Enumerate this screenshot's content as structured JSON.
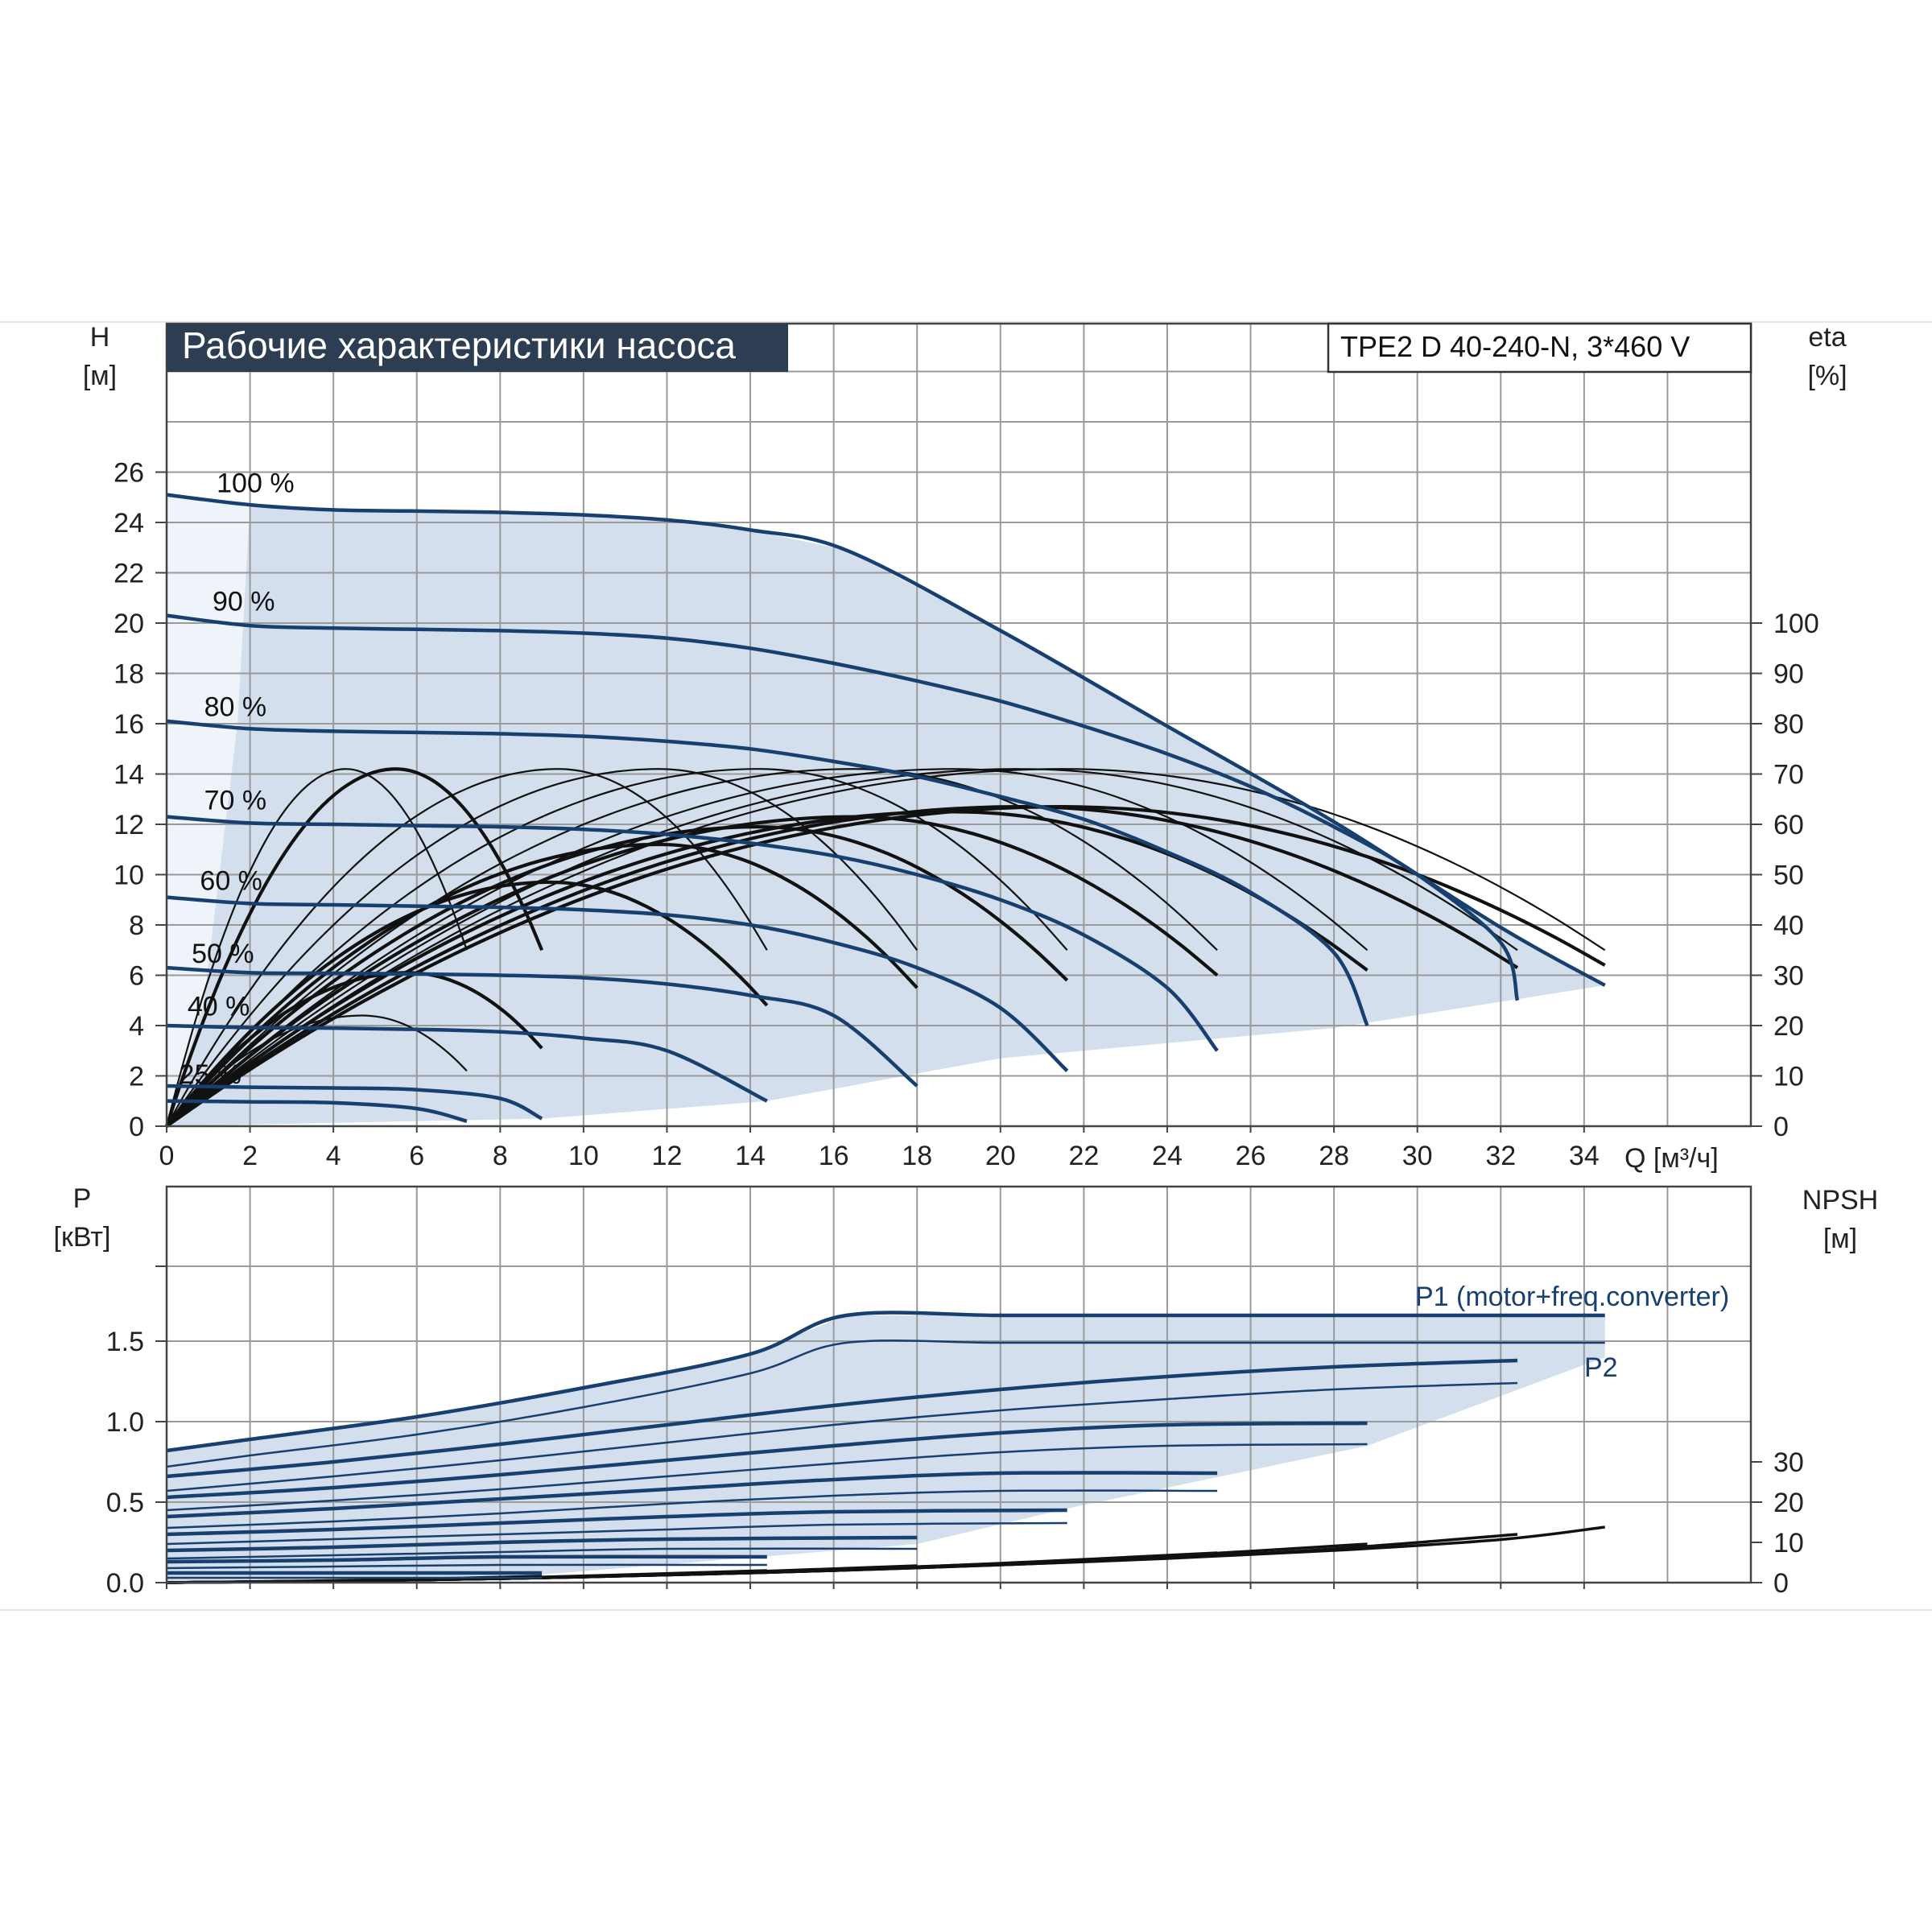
{
  "chart_data": [
    {
      "type": "line",
      "title": "Рабочие характеристики насоса",
      "model": "TPE2 D 40-240-N, 3*460 V",
      "ylabel": "H",
      "yunit": "[м]",
      "y2label": "eta",
      "y2unit": "[%]",
      "xlabel": "Q [м³/ч]",
      "xlim": [
        0,
        38
      ],
      "ylim": [
        0,
        26
      ],
      "y2lim": [
        0,
        130
      ],
      "x_ticks": [
        "0",
        "2",
        "4",
        "6",
        "8",
        "10",
        "12",
        "14",
        "16",
        "18",
        "20",
        "22",
        "24",
        "26",
        "28",
        "30",
        "32",
        "34"
      ],
      "y_ticks": [
        "0",
        "2",
        "4",
        "6",
        "8",
        "10",
        "12",
        "14",
        "16",
        "18",
        "20",
        "22",
        "24",
        "26"
      ],
      "y2_ticks": [
        "0",
        "10",
        "20",
        "30",
        "40",
        "50",
        "60",
        "70",
        "80",
        "90",
        "100"
      ],
      "grid": true,
      "operating_range_fill": "#d3dfec",
      "series": [
        {
          "name": "100 %",
          "color": "#173f6f",
          "x": [
            0,
            2,
            4,
            6,
            8,
            10,
            12,
            14,
            16.3,
            20,
            24,
            28,
            32,
            34.5
          ],
          "y": [
            25.1,
            24.7,
            24.5,
            24.45,
            24.4,
            24.3,
            24.1,
            23.7,
            22.9,
            19.7,
            15.9,
            12.1,
            7.9,
            5.6
          ]
        },
        {
          "name": "90 %",
          "color": "#173f6f",
          "x": [
            0,
            2,
            4,
            6,
            8,
            10,
            12,
            14,
            16,
            18,
            20,
            22,
            24,
            26,
            28,
            30,
            32,
            32.4
          ],
          "y": [
            20.3,
            19.9,
            19.8,
            19.75,
            19.7,
            19.6,
            19.4,
            19.0,
            18.4,
            17.7,
            16.9,
            15.9,
            14.8,
            13.5,
            11.9,
            10.0,
            7.3,
            5.0
          ]
        },
        {
          "name": "80 %",
          "color": "#173f6f",
          "x": [
            0,
            2,
            4,
            6,
            8,
            10,
            12,
            14,
            16,
            18,
            20,
            22,
            24,
            26,
            28,
            28.8
          ],
          "y": [
            16.1,
            15.8,
            15.7,
            15.65,
            15.6,
            15.5,
            15.3,
            15.0,
            14.5,
            13.9,
            13.1,
            12.2,
            10.9,
            9.3,
            6.9,
            4.0
          ]
        },
        {
          "name": "70 %",
          "color": "#173f6f",
          "x": [
            0,
            2,
            4,
            6,
            8,
            10,
            12,
            14,
            16,
            18,
            20,
            22,
            24,
            25.2
          ],
          "y": [
            12.3,
            12.05,
            12.0,
            11.95,
            11.9,
            11.8,
            11.6,
            11.25,
            10.75,
            10.0,
            9.0,
            7.6,
            5.5,
            3.0
          ]
        },
        {
          "name": "60 %",
          "color": "#173f6f",
          "x": [
            0,
            2,
            4,
            6,
            8,
            10,
            12,
            14,
            16,
            18,
            20,
            21.6
          ],
          "y": [
            9.1,
            8.85,
            8.8,
            8.75,
            8.7,
            8.6,
            8.4,
            8.0,
            7.3,
            6.3,
            4.7,
            2.2
          ]
        },
        {
          "name": "50 %",
          "color": "#173f6f",
          "x": [
            0,
            2,
            4,
            6,
            8,
            10,
            12,
            14,
            16,
            18
          ],
          "y": [
            6.3,
            6.1,
            6.08,
            6.05,
            6.0,
            5.9,
            5.65,
            5.2,
            4.4,
            1.6
          ]
        },
        {
          "name": "40 %",
          "color": "#173f6f",
          "x": [
            0,
            2,
            4,
            6,
            8,
            10,
            12,
            14.4
          ],
          "y": [
            4.0,
            3.92,
            3.9,
            3.85,
            3.75,
            3.5,
            3.0,
            1.0
          ]
        },
        {
          "name": "25 %",
          "color": "#173f6f",
          "x": [
            0,
            2,
            4,
            6,
            8,
            9
          ],
          "y": [
            1.6,
            1.55,
            1.52,
            1.45,
            1.1,
            0.3
          ]
        },
        {
          "name": "",
          "color": "#173f6f",
          "x": [
            0,
            2,
            4,
            6,
            7.2
          ],
          "y": [
            1.0,
            0.97,
            0.93,
            0.7,
            0.2
          ]
        }
      ],
      "labels": [
        "100 %",
        "90 %",
        "80 %",
        "70 %",
        "60 %",
        "50 %",
        "40 %",
        "25 %"
      ],
      "efficiency_curves": [
        {
          "peak_q": 4.3,
          "peak_eta": 71,
          "end_q": 7.2,
          "end_eta": 35
        },
        {
          "peak_q": 5.5,
          "peak_eta": 71,
          "end_q": 9.0,
          "end_eta": 35
        },
        {
          "peak_q": 4.7,
          "peak_eta": 22,
          "end_q": 7.2,
          "end_eta": 11
        },
        {
          "peak_q": 5.8,
          "peak_eta": 30.5,
          "end_q": 9.0,
          "end_eta": 15.5
        },
        {
          "peak_q": 9.4,
          "peak_eta": 71,
          "end_q": 14.4,
          "end_eta": 35
        },
        {
          "peak_q": 9.2,
          "peak_eta": 48.5,
          "end_q": 14.4,
          "end_eta": 24
        },
        {
          "peak_q": 11.8,
          "peak_eta": 71,
          "end_q": 18.0,
          "end_eta": 35
        },
        {
          "peak_q": 11.8,
          "peak_eta": 56,
          "end_q": 18.0,
          "end_eta": 27.5
        },
        {
          "peak_q": 14.2,
          "peak_eta": 71,
          "end_q": 21.6,
          "end_eta": 35
        },
        {
          "peak_q": 14.2,
          "peak_eta": 59.5,
          "end_q": 21.6,
          "end_eta": 29
        },
        {
          "peak_q": 16.5,
          "peak_eta": 71,
          "end_q": 25.2,
          "end_eta": 35
        },
        {
          "peak_q": 16.5,
          "peak_eta": 61.5,
          "end_q": 25.2,
          "end_eta": 30
        },
        {
          "peak_q": 18.9,
          "peak_eta": 71,
          "end_q": 28.8,
          "end_eta": 35
        },
        {
          "peak_q": 18.9,
          "peak_eta": 62.5,
          "end_q": 28.8,
          "end_eta": 31
        },
        {
          "peak_q": 20.5,
          "peak_eta": 71,
          "end_q": 32.4,
          "end_eta": 35
        },
        {
          "peak_q": 20.5,
          "peak_eta": 63.5,
          "end_q": 32.4,
          "end_eta": 31.5
        },
        {
          "peak_q": 21.5,
          "peak_eta": 71,
          "end_q": 34.5,
          "end_eta": 35
        },
        {
          "peak_q": 21.5,
          "peak_eta": 63.5,
          "end_q": 34.5,
          "end_eta": 32
        }
      ]
    },
    {
      "type": "line",
      "ylabel": "P",
      "yunit": "[кВт]",
      "y2label": "NPSH",
      "y2unit": "[м]",
      "xlim": [
        0,
        38
      ],
      "ylim": [
        0,
        2.0
      ],
      "y2lim": [
        0,
        40
      ],
      "y_ticks": [
        "0.0",
        "0.5",
        "1.0",
        "1.5"
      ],
      "y2_ticks": [
        "0",
        "10",
        "20",
        "30"
      ],
      "grid": true,
      "labels": [
        "P1 (motor+freq.converter)",
        "P2"
      ],
      "p1_series": [
        {
          "x": [
            0,
            2,
            6,
            10,
            14,
            16.3,
            20,
            24,
            28,
            32,
            34.5
          ],
          "y": [
            0.82,
            0.89,
            1.03,
            1.21,
            1.42,
            1.66,
            1.66,
            1.66,
            1.66,
            1.66,
            1.66
          ]
        },
        {
          "x": [
            0,
            4,
            8,
            12,
            16,
            20,
            24,
            28,
            32.4
          ],
          "y": [
            0.66,
            0.75,
            0.86,
            0.98,
            1.1,
            1.2,
            1.28,
            1.34,
            1.38
          ]
        },
        {
          "x": [
            0,
            4,
            8,
            12,
            16,
            20,
            24,
            28.8
          ],
          "y": [
            0.53,
            0.59,
            0.67,
            0.76,
            0.85,
            0.93,
            0.98,
            0.99
          ]
        },
        {
          "x": [
            0,
            4,
            8,
            12,
            16,
            20,
            25.2
          ],
          "y": [
            0.41,
            0.46,
            0.52,
            0.58,
            0.64,
            0.68,
            0.68
          ]
        },
        {
          "x": [
            0,
            4,
            8,
            12,
            16,
            21.6
          ],
          "y": [
            0.3,
            0.33,
            0.37,
            0.41,
            0.44,
            0.45
          ]
        },
        {
          "x": [
            0,
            4,
            8,
            12,
            18
          ],
          "y": [
            0.2,
            0.22,
            0.25,
            0.27,
            0.28
          ]
        },
        {
          "x": [
            0,
            4,
            8,
            14.4
          ],
          "y": [
            0.13,
            0.14,
            0.16,
            0.16
          ]
        },
        {
          "x": [
            0,
            4,
            9
          ],
          "y": [
            0.06,
            0.06,
            0.06
          ]
        }
      ],
      "p2_series": [
        {
          "x": [
            0,
            2,
            6,
            10,
            14,
            16.3,
            20,
            24,
            28,
            32,
            34.5
          ],
          "y": [
            0.72,
            0.79,
            0.92,
            1.09,
            1.3,
            1.49,
            1.49,
            1.49,
            1.49,
            1.49,
            1.49
          ]
        },
        {
          "x": [
            0,
            4,
            8,
            12,
            16,
            20,
            24,
            28,
            32.4
          ],
          "y": [
            0.57,
            0.66,
            0.76,
            0.87,
            0.98,
            1.07,
            1.14,
            1.2,
            1.24
          ]
        },
        {
          "x": [
            0,
            4,
            8,
            12,
            16,
            20,
            24,
            28.8
          ],
          "y": [
            0.45,
            0.51,
            0.58,
            0.66,
            0.74,
            0.81,
            0.85,
            0.86
          ]
        },
        {
          "x": [
            0,
            4,
            8,
            12,
            16,
            20,
            25.2
          ],
          "y": [
            0.34,
            0.38,
            0.43,
            0.49,
            0.54,
            0.57,
            0.57
          ]
        },
        {
          "x": [
            0,
            4,
            8,
            12,
            16,
            21.6
          ],
          "y": [
            0.24,
            0.27,
            0.3,
            0.33,
            0.36,
            0.37
          ]
        },
        {
          "x": [
            0,
            4,
            8,
            12,
            18
          ],
          "y": [
            0.15,
            0.17,
            0.19,
            0.21,
            0.21
          ]
        },
        {
          "x": [
            0,
            4,
            8,
            14.4
          ],
          "y": [
            0.09,
            0.1,
            0.11,
            0.11
          ]
        },
        {
          "x": [
            0,
            4,
            9
          ],
          "y": [
            0.03,
            0.03,
            0.03
          ]
        }
      ],
      "npsh_series": [
        {
          "x": [
            0,
            4,
            8,
            12,
            16,
            20,
            24,
            28,
            32,
            34.5
          ],
          "y": [
            0,
            0.4,
            1.0,
            1.9,
            3.0,
            4.4,
            6.0,
            8.0,
            10.7,
            13.8
          ]
        },
        {
          "x": [
            0,
            4,
            8,
            12,
            16,
            20,
            24,
            28,
            32.4
          ],
          "y": [
            0,
            0.4,
            1.0,
            1.9,
            3.0,
            4.4,
            6.1,
            8.4,
            12.0
          ]
        },
        {
          "x": [
            0,
            4,
            8,
            12,
            16,
            20,
            24,
            28.8
          ],
          "y": [
            0,
            0.4,
            1.0,
            1.9,
            3.0,
            4.6,
            6.6,
            9.6
          ]
        },
        {
          "x": [
            0,
            4,
            8,
            12,
            16,
            20,
            25.2
          ],
          "y": [
            0,
            0.4,
            1.0,
            1.9,
            3.1,
            4.8,
            7.4
          ]
        },
        {
          "x": [
            0,
            4,
            8,
            12,
            16,
            21.6
          ],
          "y": [
            0,
            0.4,
            1.0,
            2.0,
            3.2,
            5.4
          ]
        },
        {
          "x": [
            0,
            4,
            8,
            12,
            18
          ],
          "y": [
            0,
            0.4,
            1.0,
            2.0,
            4.2
          ]
        },
        {
          "x": [
            0,
            4,
            8,
            14.4
          ],
          "y": [
            0,
            0.4,
            1.1,
            3.0
          ]
        },
        {
          "x": [
            0,
            4,
            9
          ],
          "y": [
            0,
            0.5,
            1.6
          ]
        }
      ]
    }
  ]
}
